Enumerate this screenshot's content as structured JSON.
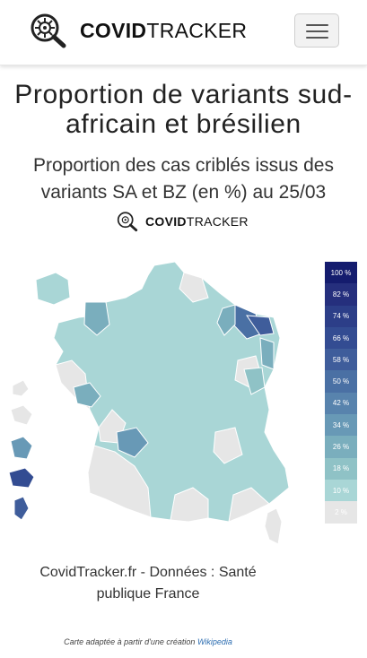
{
  "navbar": {
    "brand_bold": "COVID",
    "brand_light": "TRACKER",
    "logo_icon": "virus-magnifier-icon",
    "menu_icon": "hamburger-menu-icon"
  },
  "page": {
    "title": "Proportion de variants sud-africain et brésilien",
    "subtitle": "Proportion des cas criblés issus des variants SA et BZ (en %) au 25/03"
  },
  "watermark": {
    "brand_bold": "COVID",
    "brand_light": "TRACKER"
  },
  "legend": {
    "items": [
      {
        "label": "100 %",
        "color": "#141c6e"
      },
      {
        "label": "82 %",
        "color": "#252f7d"
      },
      {
        "label": "74 %",
        "color": "#2c3e88"
      },
      {
        "label": "66 %",
        "color": "#334c92"
      },
      {
        "label": "58 %",
        "color": "#3f5d9b"
      },
      {
        "label": "50 %",
        "color": "#4a70a4"
      },
      {
        "label": "42 %",
        "color": "#5883ad"
      },
      {
        "label": "34 %",
        "color": "#6899b6"
      },
      {
        "label": "26 %",
        "color": "#7aaebd"
      },
      {
        "label": "18 %",
        "color": "#8fc2c6"
      },
      {
        "label": "10 %",
        "color": "#a9d6d6"
      },
      {
        "label": "2 %",
        "color": "#e6e6e6"
      }
    ]
  },
  "credit": {
    "text": "CovidTracker.fr - Données : Santé publique France"
  },
  "note": {
    "text": "Carte adaptée à partir d'une création",
    "link": "Wikipedia"
  }
}
